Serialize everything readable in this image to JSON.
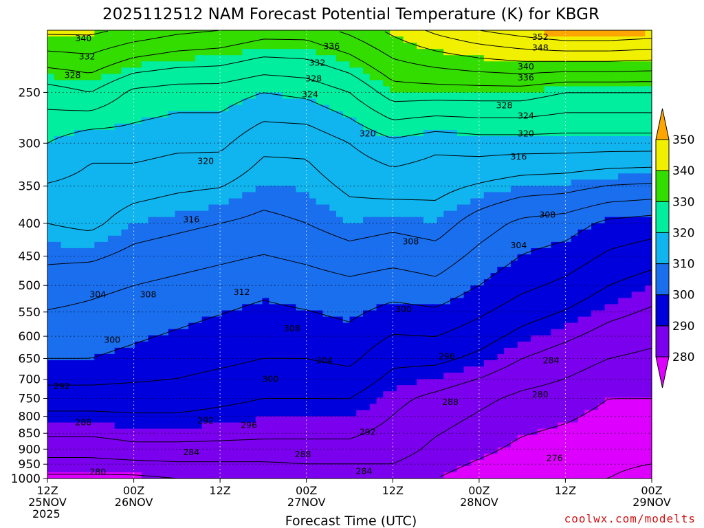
{
  "chart_data": {
    "type": "heatmap",
    "title": "2025112512 NAM Forecast Potential Temperature (K) for KBGR",
    "xlabel": "Forecast Time (UTC)",
    "ylabel": "",
    "x_ticks": [
      {
        "hours": 0,
        "line1": "12Z",
        "line2": "25NOV",
        "line3": "2025"
      },
      {
        "hours": 12,
        "line1": "00Z",
        "line2": "26NOV",
        "line3": ""
      },
      {
        "hours": 24,
        "line1": "12Z",
        "line2": "",
        "line3": ""
      },
      {
        "hours": 36,
        "line1": "00Z",
        "line2": "27NOV",
        "line3": ""
      },
      {
        "hours": 48,
        "line1": "12Z",
        "line2": "",
        "line3": ""
      },
      {
        "hours": 60,
        "line1": "00Z",
        "line2": "28NOV",
        "line3": ""
      },
      {
        "hours": 72,
        "line1": "12Z",
        "line2": "",
        "line3": ""
      },
      {
        "hours": 84,
        "line1": "00Z",
        "line2": "29NOV",
        "line3": ""
      }
    ],
    "xlim_hours": [
      0,
      84
    ],
    "y_ticks": [
      250,
      300,
      350,
      400,
      450,
      500,
      550,
      600,
      650,
      700,
      750,
      800,
      850,
      900,
      950,
      1000
    ],
    "y_scale": "log",
    "ylim": [
      1000,
      200
    ],
    "grid": true,
    "colorbar": {
      "placement": "right",
      "levels": [
        280,
        290,
        300,
        310,
        320,
        330,
        340,
        350
      ],
      "colors": [
        "#dd00ff",
        "#7a00ee",
        "#0000dd",
        "#1a6fee",
        "#10b4ee",
        "#00ee9e",
        "#33dd00",
        "#f0f000",
        "#ffa500"
      ],
      "extend": "both"
    },
    "contour_interval": 4,
    "profiles": [
      {
        "hours": 0,
        "theta": [
          {
            "p": 1000,
            "t": 279
          },
          {
            "p": 900,
            "t": 286
          },
          {
            "p": 750,
            "t": 294
          },
          {
            "p": 650,
            "t": 300
          },
          {
            "p": 500,
            "t": 306
          },
          {
            "p": 400,
            "t": 312
          },
          {
            "p": 300,
            "t": 320
          },
          {
            "p": 250,
            "t": 326
          },
          {
            "p": 200,
            "t": 341
          }
        ]
      },
      {
        "hours": 6,
        "theta": [
          {
            "p": 1000,
            "t": 279
          },
          {
            "p": 900,
            "t": 286
          },
          {
            "p": 750,
            "t": 294
          },
          {
            "p": 650,
            "t": 300
          },
          {
            "p": 500,
            "t": 305
          },
          {
            "p": 400,
            "t": 313
          },
          {
            "p": 300,
            "t": 317
          },
          {
            "p": 250,
            "t": 328
          },
          {
            "p": 200,
            "t": 341
          }
        ]
      },
      {
        "hours": 12,
        "theta": [
          {
            "p": 1000,
            "t": 279
          },
          {
            "p": 900,
            "t": 287
          },
          {
            "p": 750,
            "t": 294
          },
          {
            "p": 650,
            "t": 299
          },
          {
            "p": 500,
            "t": 304
          },
          {
            "p": 400,
            "t": 310
          },
          {
            "p": 300,
            "t": 318
          },
          {
            "p": 250,
            "t": 323
          },
          {
            "p": 200,
            "t": 339
          }
        ]
      },
      {
        "hours": 18,
        "theta": [
          {
            "p": 1000,
            "t": 280
          },
          {
            "p": 900,
            "t": 287
          },
          {
            "p": 750,
            "t": 294
          },
          {
            "p": 650,
            "t": 298
          },
          {
            "p": 500,
            "t": 303
          },
          {
            "p": 400,
            "t": 309
          },
          {
            "p": 300,
            "t": 317
          },
          {
            "p": 250,
            "t": 322
          },
          {
            "p": 200,
            "t": 337
          }
        ]
      },
      {
        "hours": 24,
        "theta": [
          {
            "p": 1000,
            "t": 280
          },
          {
            "p": 900,
            "t": 287
          },
          {
            "p": 750,
            "t": 293
          },
          {
            "p": 650,
            "t": 297
          },
          {
            "p": 500,
            "t": 302
          },
          {
            "p": 400,
            "t": 308
          },
          {
            "p": 300,
            "t": 317
          },
          {
            "p": 250,
            "t": 322
          },
          {
            "p": 200,
            "t": 336
          }
        ]
      },
      {
        "hours": 30,
        "theta": [
          {
            "p": 1000,
            "t": 280
          },
          {
            "p": 900,
            "t": 287
          },
          {
            "p": 750,
            "t": 292
          },
          {
            "p": 650,
            "t": 296
          },
          {
            "p": 500,
            "t": 301
          },
          {
            "p": 400,
            "t": 307
          },
          {
            "p": 300,
            "t": 313
          },
          {
            "p": 250,
            "t": 320
          },
          {
            "p": 200,
            "t": 334
          }
        ]
      },
      {
        "hours": 36,
        "theta": [
          {
            "p": 1000,
            "t": 281
          },
          {
            "p": 900,
            "t": 287
          },
          {
            "p": 750,
            "t": 292
          },
          {
            "p": 650,
            "t": 296
          },
          {
            "p": 500,
            "t": 302
          },
          {
            "p": 400,
            "t": 308
          },
          {
            "p": 300,
            "t": 313
          },
          {
            "p": 250,
            "t": 321
          },
          {
            "p": 200,
            "t": 334
          }
        ]
      },
      {
        "hours": 42,
        "theta": [
          {
            "p": 1000,
            "t": 281
          },
          {
            "p": 900,
            "t": 287
          },
          {
            "p": 750,
            "t": 292
          },
          {
            "p": 650,
            "t": 297
          },
          {
            "p": 500,
            "t": 303
          },
          {
            "p": 400,
            "t": 310
          },
          {
            "p": 300,
            "t": 316
          },
          {
            "p": 250,
            "t": 324
          },
          {
            "p": 200,
            "t": 337
          }
        ]
      },
      {
        "hours": 48,
        "theta": [
          {
            "p": 1000,
            "t": 282
          },
          {
            "p": 900,
            "t": 286
          },
          {
            "p": 750,
            "t": 289
          },
          {
            "p": 650,
            "t": 293
          },
          {
            "p": 500,
            "t": 302
          },
          {
            "p": 400,
            "t": 309
          },
          {
            "p": 300,
            "t": 319
          },
          {
            "p": 250,
            "t": 330
          },
          {
            "p": 200,
            "t": 341
          }
        ]
      },
      {
        "hours": 54,
        "theta": [
          {
            "p": 1000,
            "t": 280
          },
          {
            "p": 900,
            "t": 283
          },
          {
            "p": 750,
            "t": 287
          },
          {
            "p": 650,
            "t": 293
          },
          {
            "p": 500,
            "t": 303
          },
          {
            "p": 400,
            "t": 310
          },
          {
            "p": 300,
            "t": 317
          },
          {
            "p": 250,
            "t": 330
          },
          {
            "p": 200,
            "t": 345
          }
        ]
      },
      {
        "hours": 60,
        "theta": [
          {
            "p": 1000,
            "t": 278
          },
          {
            "p": 900,
            "t": 281
          },
          {
            "p": 750,
            "t": 285
          },
          {
            "p": 650,
            "t": 291
          },
          {
            "p": 500,
            "t": 300
          },
          {
            "p": 400,
            "t": 306
          },
          {
            "p": 300,
            "t": 318
          },
          {
            "p": 250,
            "t": 330
          },
          {
            "p": 200,
            "t": 348
          }
        ]
      },
      {
        "hours": 66,
        "theta": [
          {
            "p": 1000,
            "t": 277
          },
          {
            "p": 900,
            "t": 279
          },
          {
            "p": 750,
            "t": 283
          },
          {
            "p": 650,
            "t": 288
          },
          {
            "p": 500,
            "t": 297
          },
          {
            "p": 400,
            "t": 303
          },
          {
            "p": 300,
            "t": 318
          },
          {
            "p": 250,
            "t": 330
          },
          {
            "p": 200,
            "t": 350
          }
        ]
      },
      {
        "hours": 72,
        "theta": [
          {
            "p": 1000,
            "t": 276
          },
          {
            "p": 900,
            "t": 278
          },
          {
            "p": 750,
            "t": 282
          },
          {
            "p": 650,
            "t": 286
          },
          {
            "p": 500,
            "t": 295
          },
          {
            "p": 400,
            "t": 302
          },
          {
            "p": 300,
            "t": 318
          },
          {
            "p": 250,
            "t": 328
          },
          {
            "p": 200,
            "t": 352
          }
        ]
      },
      {
        "hours": 78,
        "theta": [
          {
            "p": 1000,
            "t": 276
          },
          {
            "p": 900,
            "t": 277
          },
          {
            "p": 750,
            "t": 280
          },
          {
            "p": 650,
            "t": 284
          },
          {
            "p": 500,
            "t": 292
          },
          {
            "p": 400,
            "t": 299
          },
          {
            "p": 300,
            "t": 318
          },
          {
            "p": 250,
            "t": 328
          },
          {
            "p": 200,
            "t": 352
          }
        ]
      },
      {
        "hours": 84,
        "theta": [
          {
            "p": 1000,
            "t": 275
          },
          {
            "p": 900,
            "t": 277
          },
          {
            "p": 750,
            "t": 280
          },
          {
            "p": 650,
            "t": 283
          },
          {
            "p": 500,
            "t": 290
          },
          {
            "p": 400,
            "t": 298
          },
          {
            "p": 300,
            "t": 318
          },
          {
            "p": 250,
            "t": 328
          },
          {
            "p": 200,
            "t": 351
          }
        ]
      }
    ],
    "contour_labels": [
      {
        "text": "340",
        "hours": 5,
        "p": 206
      },
      {
        "text": "332",
        "hours": 5.5,
        "p": 220
      },
      {
        "text": "328",
        "hours": 3.5,
        "p": 235
      },
      {
        "text": "336",
        "hours": 39.5,
        "p": 212
      },
      {
        "text": "332",
        "hours": 37.5,
        "p": 225
      },
      {
        "text": "328",
        "hours": 37,
        "p": 238
      },
      {
        "text": "324",
        "hours": 36.5,
        "p": 252
      },
      {
        "text": "352",
        "hours": 68.5,
        "p": 205
      },
      {
        "text": "348",
        "hours": 68.5,
        "p": 213
      },
      {
        "text": "340",
        "hours": 66.5,
        "p": 228
      },
      {
        "text": "336",
        "hours": 66.5,
        "p": 237
      },
      {
        "text": "328",
        "hours": 63.5,
        "p": 262
      },
      {
        "text": "324",
        "hours": 66.5,
        "p": 272
      },
      {
        "text": "320",
        "hours": 66.5,
        "p": 290
      },
      {
        "text": "316",
        "hours": 65.5,
        "p": 315
      },
      {
        "text": "320",
        "hours": 44.5,
        "p": 290
      },
      {
        "text": "320",
        "hours": 22,
        "p": 320
      },
      {
        "text": "316",
        "hours": 20,
        "p": 395
      },
      {
        "text": "308",
        "hours": 69.5,
        "p": 388
      },
      {
        "text": "308",
        "hours": 50.5,
        "p": 427
      },
      {
        "text": "304",
        "hours": 65.5,
        "p": 433
      },
      {
        "text": "312",
        "hours": 27,
        "p": 512
      },
      {
        "text": "304",
        "hours": 7,
        "p": 517
      },
      {
        "text": "308",
        "hours": 14,
        "p": 517
      },
      {
        "text": "300",
        "hours": 49.5,
        "p": 545
      },
      {
        "text": "308",
        "hours": 34,
        "p": 584
      },
      {
        "text": "300",
        "hours": 9,
        "p": 608
      },
      {
        "text": "304",
        "hours": 38.5,
        "p": 655
      },
      {
        "text": "296",
        "hours": 55.5,
        "p": 645
      },
      {
        "text": "284",
        "hours": 70,
        "p": 655
      },
      {
        "text": "300",
        "hours": 31,
        "p": 700
      },
      {
        "text": "292",
        "hours": 2,
        "p": 718
      },
      {
        "text": "288",
        "hours": 56,
        "p": 760
      },
      {
        "text": "280",
        "hours": 68.5,
        "p": 740
      },
      {
        "text": "288",
        "hours": 5,
        "p": 818
      },
      {
        "text": "292",
        "hours": 22,
        "p": 813
      },
      {
        "text": "296",
        "hours": 28,
        "p": 826
      },
      {
        "text": "292",
        "hours": 44.5,
        "p": 847
      },
      {
        "text": "284",
        "hours": 20,
        "p": 910
      },
      {
        "text": "288",
        "hours": 35.5,
        "p": 917
      },
      {
        "text": "276",
        "hours": 70.5,
        "p": 930
      },
      {
        "text": "280",
        "hours": 7,
        "p": 977
      },
      {
        "text": "284",
        "hours": 44,
        "p": 975
      }
    ]
  },
  "credit": "coolwx.com/modelts"
}
